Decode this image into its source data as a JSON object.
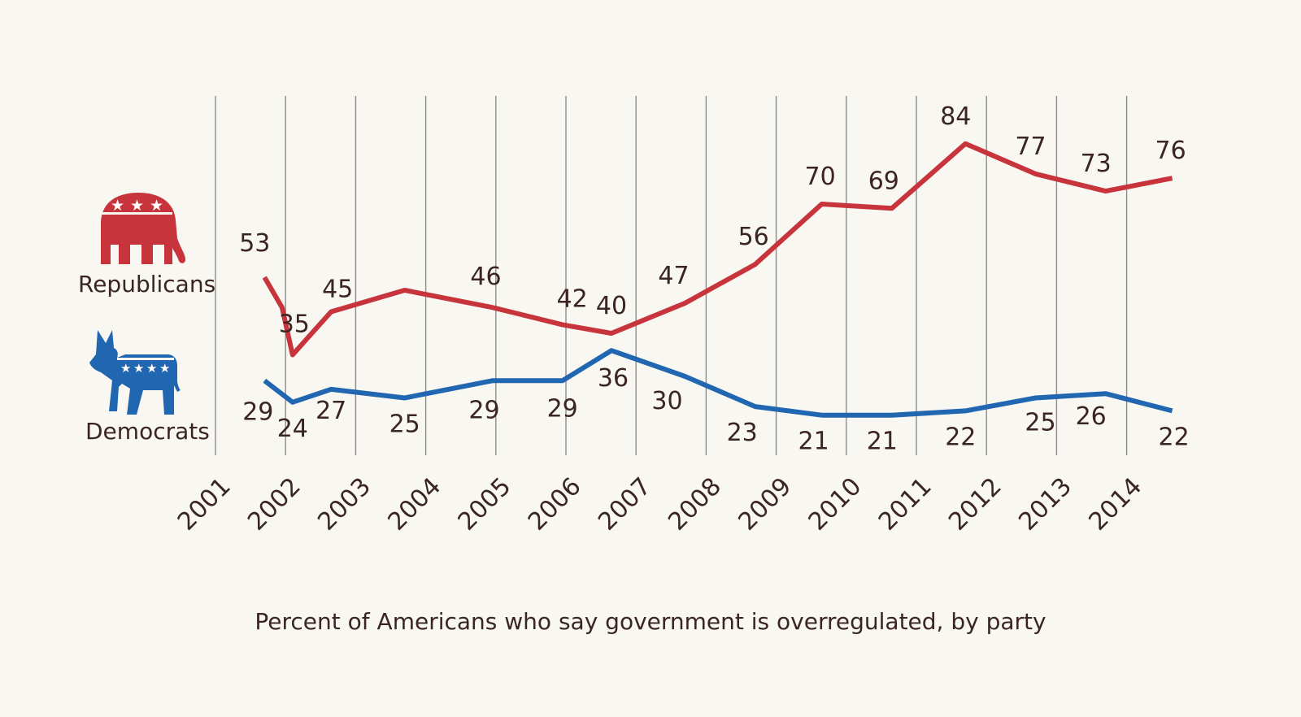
{
  "colors": {
    "republicans": "#c8343c",
    "democrats": "#2166b1",
    "text": "#3a2523",
    "grid": "#8c8c8c",
    "background": "#f8f7f2"
  },
  "icons": {
    "republicans": "elephant-icon",
    "democrats": "donkey-icon"
  },
  "caption": "Percent of Americans who say government is overregulated, by party",
  "chart_data": {
    "type": "line",
    "title": "",
    "xlabel": "",
    "ylabel": "",
    "grid": "vertical",
    "ylim": [
      0,
      100
    ],
    "xlim": [
      2001,
      2015
    ],
    "x_ticks": [
      "2001",
      "2002",
      "2003",
      "2004",
      "2005",
      "2006",
      "2007",
      "2008",
      "2009",
      "2010",
      "2011",
      "2012",
      "2013",
      "2014"
    ],
    "series": [
      {
        "name": "Republicans",
        "color": "#c8343c",
        "x": [
          2001.7,
          2001.95,
          2002.1,
          2002.65,
          2003.7,
          2004.95,
          2005.95,
          2006.65,
          2007.7,
          2008.7,
          2009.65,
          2010.65,
          2011.7,
          2012.7,
          2013.7,
          2014.65
        ],
        "values": [
          53,
          46,
          35,
          45,
          50,
          46,
          42,
          40,
          47,
          56,
          70,
          69,
          84,
          77,
          73,
          76
        ],
        "labels": [
          "53",
          "",
          "35",
          "45",
          "",
          "46",
          "42",
          "40",
          "47",
          "56",
          "70",
          "69",
          "84",
          "77",
          "73",
          "76"
        ]
      },
      {
        "name": "Democrats",
        "color": "#2166b1",
        "x": [
          2001.7,
          2002.1,
          2002.65,
          2003.7,
          2004.95,
          2005.95,
          2006.65,
          2007.7,
          2008.7,
          2009.65,
          2010.65,
          2011.7,
          2012.7,
          2013.7,
          2014.65
        ],
        "values": [
          29,
          24,
          27,
          25,
          29,
          29,
          36,
          30,
          23,
          21,
          21,
          22,
          25,
          26,
          22
        ],
        "labels": [
          "29",
          "24",
          "27",
          "25",
          "29",
          "29",
          "36",
          "30",
          "23",
          "21",
          "21",
          "22",
          "25",
          "26",
          "22"
        ]
      }
    ]
  }
}
